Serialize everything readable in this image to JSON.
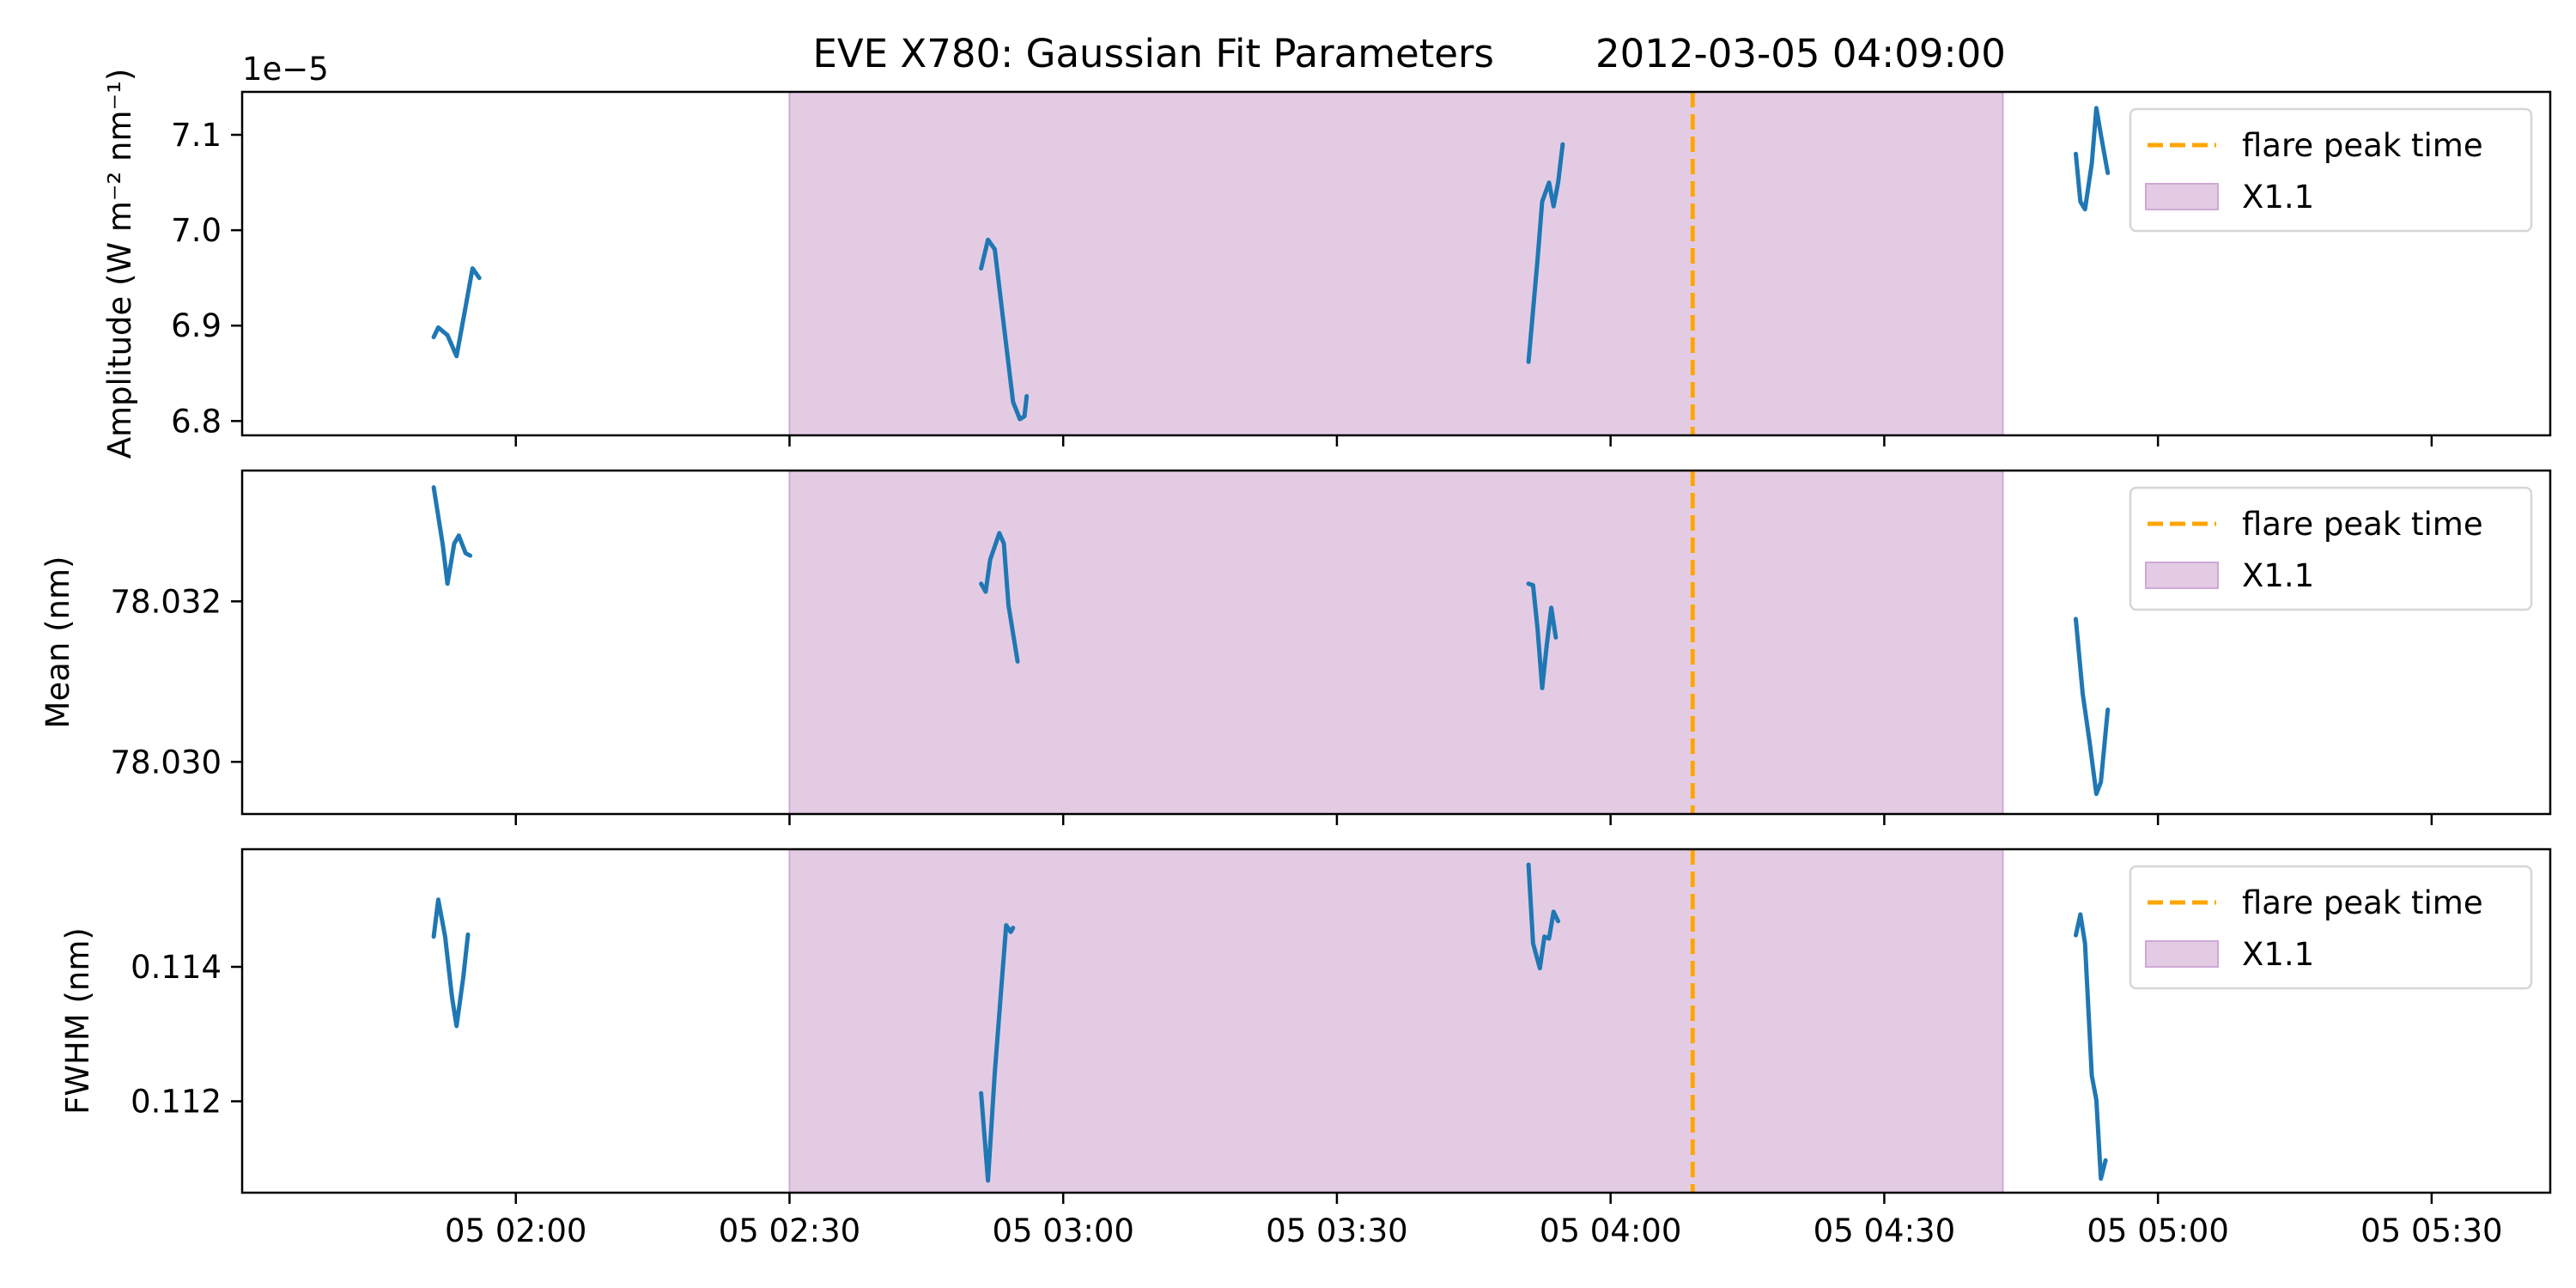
{
  "title": {
    "left": "EVE X780: Gaussian Fit Parameters",
    "right": "2012-03-05 04:09:00"
  },
  "colors": {
    "line": "#1f77b4",
    "peak": "#ffa500",
    "flare_fill": "#e3cce3",
    "flare_edge": "#cfa8d6"
  },
  "chart_data": {
    "type": "line",
    "x_unit": "time (UTC, 2012-03-05)",
    "x_ticks": [
      {
        "t": "02:00",
        "label": "05 02:00"
      },
      {
        "t": "02:30",
        "label": "05 02:30"
      },
      {
        "t": "03:00",
        "label": "05 03:00"
      },
      {
        "t": "03:30",
        "label": "05 03:30"
      },
      {
        "t": "04:00",
        "label": "05 04:00"
      },
      {
        "t": "04:30",
        "label": "05 04:30"
      },
      {
        "t": "05:00",
        "label": "05 05:00"
      },
      {
        "t": "05:30",
        "label": "05 05:30"
      }
    ],
    "xlim": [
      "01:30",
      "05:43"
    ],
    "flare_peak_time": "04:09",
    "flare_span": [
      "02:30",
      "04:43"
    ],
    "legend": {
      "position": "upper right",
      "entries": [
        {
          "label": "flare peak time",
          "kind": "dashed-line"
        },
        {
          "label": "X1.1",
          "kind": "patch"
        }
      ]
    },
    "panels": [
      {
        "ylabel": "Amplitude (W m⁻² nm⁻¹)",
        "offset_label": "1e−5",
        "ylim": [
          6.785,
          7.145
        ],
        "yticks": [
          {
            "v": 6.8,
            "label": "6.8"
          },
          {
            "v": 6.9,
            "label": "6.9"
          },
          {
            "v": 7.0,
            "label": "7.0"
          },
          {
            "v": 7.1,
            "label": "7.1"
          }
        ],
        "segments": [
          [
            [
              "01:51",
              6.888
            ],
            [
              "01:51:30",
              6.898
            ],
            [
              "01:52:30",
              6.89
            ],
            [
              "01:53:30",
              6.868
            ],
            [
              "01:54:30",
              6.92
            ],
            [
              "01:55:15",
              6.96
            ],
            [
              "01:56",
              6.95
            ]
          ],
          [
            [
              "02:51",
              6.96
            ],
            [
              "02:51:45",
              6.99
            ],
            [
              "02:52:30",
              6.98
            ],
            [
              "02:53:30",
              6.9
            ],
            [
              "02:54:30",
              6.82
            ],
            [
              "02:55:15",
              6.802
            ],
            [
              "02:55:45",
              6.805
            ],
            [
              "02:56",
              6.826
            ]
          ],
          [
            [
              "03:51",
              6.862
            ],
            [
              "03:52",
              6.97
            ],
            [
              "03:52:30",
              7.03
            ],
            [
              "03:53:15",
              7.05
            ],
            [
              "03:53:45",
              7.025
            ],
            [
              "03:54:15",
              7.05
            ],
            [
              "03:54:45",
              7.09
            ]
          ],
          [
            [
              "04:51",
              7.08
            ],
            [
              "04:51:30",
              7.03
            ],
            [
              "04:52",
              7.022
            ],
            [
              "04:52:45",
              7.07
            ],
            [
              "04:53:15",
              7.128
            ],
            [
              "04:53:45",
              7.1
            ],
            [
              "04:54:30",
              7.06
            ]
          ]
        ]
      },
      {
        "ylabel": "Mean (nm)",
        "offset_label": "",
        "ylim": [
          78.02935,
          78.03363
        ],
        "yticks": [
          {
            "v": 78.03,
            "label": "78.030"
          },
          {
            "v": 78.032,
            "label": "78.032"
          }
        ],
        "segments": [
          [
            [
              "01:51",
              78.03342
            ],
            [
              "01:52",
              78.0327
            ],
            [
              "01:52:30",
              78.03222
            ],
            [
              "01:53:15",
              78.03272
            ],
            [
              "01:53:45",
              78.03282
            ],
            [
              "01:54:30",
              78.0326
            ],
            [
              "01:55",
              78.03257
            ]
          ],
          [
            [
              "02:51",
              78.03222
            ],
            [
              "02:51:30",
              78.03212
            ],
            [
              "02:52",
              78.03252
            ],
            [
              "02:53",
              78.03285
            ],
            [
              "02:53:30",
              78.03272
            ],
            [
              "02:54",
              78.03195
            ],
            [
              "02:55",
              78.03125
            ]
          ],
          [
            [
              "03:51",
              78.03222
            ],
            [
              "03:51:30",
              78.0322
            ],
            [
              "03:52",
              78.03165
            ],
            [
              "03:52:30",
              78.03092
            ],
            [
              "03:53",
              78.03145
            ],
            [
              "03:53:30",
              78.03192
            ],
            [
              "03:54",
              78.03155
            ]
          ],
          [
            [
              "04:51",
              78.03178
            ],
            [
              "04:51:45",
              78.03085
            ],
            [
              "04:52:30",
              78.03025
            ],
            [
              "04:53:15",
              78.0296
            ],
            [
              "04:53:45",
              78.02975
            ],
            [
              "04:54:30",
              78.03065
            ]
          ]
        ]
      },
      {
        "ylabel": "FWHM (nm)",
        "offset_label": "",
        "ylim": [
          0.11064,
          0.11575
        ],
        "yticks": [
          {
            "v": 0.112,
            "label": "0.112"
          },
          {
            "v": 0.114,
            "label": "0.114"
          }
        ],
        "segments": [
          [
            [
              "01:51",
              0.11445
            ],
            [
              "01:51:30",
              0.115
            ],
            [
              "01:52:15",
              0.11445
            ],
            [
              "01:53",
              0.11355
            ],
            [
              "01:53:30",
              0.11312
            ],
            [
              "01:54:15",
              0.11385
            ],
            [
              "01:54:45",
              0.11448
            ]
          ],
          [
            [
              "02:51",
              0.11212
            ],
            [
              "02:51:45",
              0.11082
            ],
            [
              "02:52:30",
              0.11242
            ],
            [
              "02:53:15",
              0.11375
            ],
            [
              "02:53:45",
              0.11462
            ],
            [
              "02:54:15",
              0.11452
            ],
            [
              "02:54:30",
              0.11458
            ]
          ],
          [
            [
              "03:51",
              0.11552
            ],
            [
              "03:51:30",
              0.11435
            ],
            [
              "03:52:15",
              0.11398
            ],
            [
              "03:52:45",
              0.11445
            ],
            [
              "03:53:15",
              0.11442
            ],
            [
              "03:53:45",
              0.11482
            ],
            [
              "03:54:15",
              0.11468
            ]
          ],
          [
            [
              "04:51",
              0.11447
            ],
            [
              "04:51:30",
              0.11478
            ],
            [
              "04:52",
              0.11435
            ],
            [
              "04:52:45",
              0.11238
            ],
            [
              "04:53:15",
              0.11202
            ],
            [
              "04:53:45",
              0.11085
            ],
            [
              "04:54:15",
              0.11112
            ]
          ]
        ]
      }
    ]
  }
}
